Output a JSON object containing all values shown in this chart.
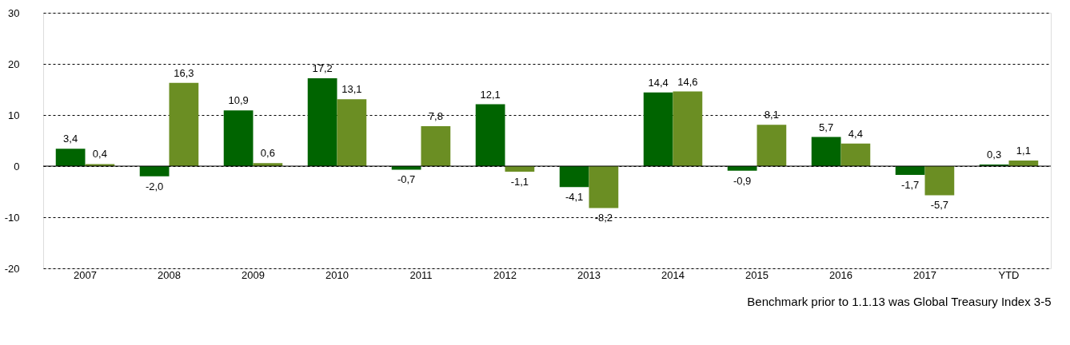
{
  "chart_data": {
    "type": "bar",
    "categories": [
      "2007",
      "2008",
      "2009",
      "2010",
      "2011",
      "2012",
      "2013",
      "2014",
      "2015",
      "2016",
      "2017",
      "YTD"
    ],
    "series": [
      {
        "color": "#006400",
        "values": [
          3.4,
          -2.0,
          10.9,
          17.2,
          -0.7,
          12.1,
          -4.1,
          14.4,
          -0.9,
          5.7,
          -1.7,
          0.3
        ],
        "value_labels": [
          "3,4",
          "-2,0",
          "10,9",
          "17,2",
          "-0,7",
          "12,1",
          "-4,1",
          "14,4",
          "-0,9",
          "5,7",
          "-1,7",
          "0,3"
        ]
      },
      {
        "color": "#6b8e23",
        "values": [
          0.4,
          16.3,
          0.6,
          13.1,
          7.8,
          -1.1,
          -8.2,
          14.6,
          8.1,
          4.4,
          -5.7,
          1.1
        ],
        "value_labels": [
          "0,4",
          "16,3",
          "0,6",
          "13,1",
          "7,8",
          "-1,1",
          "-8,2",
          "14,6",
          "8,1",
          "4,4",
          "-5,7",
          "1,1"
        ]
      }
    ],
    "ylim": [
      -20,
      30
    ],
    "yticks": [
      -20,
      -10,
      0,
      10,
      20,
      30
    ],
    "grid": "y",
    "legend": false,
    "ref_lines": [
      {
        "axis": "y",
        "value": 0,
        "color": "#000000",
        "line_style": "solid"
      }
    ],
    "annotations": [
      "Benchmark prior to 1.1.13 was Global Treasury Index 3-5"
    ]
  }
}
